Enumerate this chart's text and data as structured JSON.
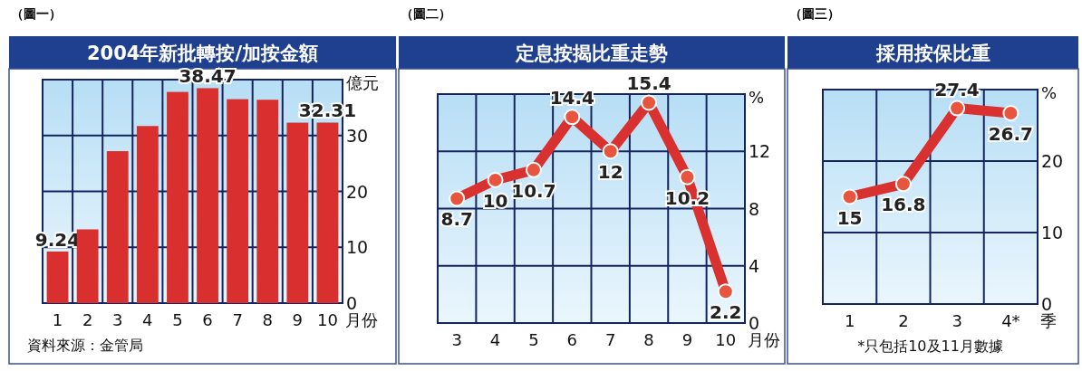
{
  "chart_data": [
    {
      "type": "bar",
      "subtitle": "（圖一）",
      "title": "2004年新批轉按/加按金額",
      "xlabel": "月份",
      "ylabel": "億元",
      "categories": [
        "1",
        "2",
        "3",
        "4",
        "5",
        "6",
        "7",
        "8",
        "9",
        "10"
      ],
      "values": [
        9.24,
        13.2,
        27.2,
        31.7,
        37.8,
        38.47,
        36.5,
        36.4,
        32.3,
        32.31
      ],
      "value_labels": [
        "9.24",
        null,
        null,
        null,
        null,
        "38.47",
        null,
        null,
        null,
        "32.31"
      ],
      "color": "#d9302f",
      "ylim": [
        0,
        40
      ],
      "yticks": [
        0,
        10,
        20,
        30
      ],
      "grid": true,
      "annotations": [
        "資料來源：金管局"
      ]
    },
    {
      "type": "line",
      "subtitle": "（圖二）",
      "title": "定息按揭比重走勢",
      "xlabel": "月份",
      "ylabel": "%",
      "categories": [
        "3",
        "4",
        "5",
        "6",
        "7",
        "8",
        "9",
        "10"
      ],
      "values": [
        8.7,
        10,
        10.7,
        14.4,
        12,
        15.4,
        10.2,
        2.2
      ],
      "color": "#d93030",
      "ylim": [
        0,
        16
      ],
      "yticks": [
        0,
        4,
        8,
        12
      ],
      "grid": true,
      "marker": "circle",
      "data_labels": true
    },
    {
      "type": "line",
      "subtitle": "（圖三）",
      "title": "採用按保比重",
      "xlabel": "季",
      "ylabel": "%",
      "categories": [
        "1",
        "2",
        "3",
        "4*"
      ],
      "values": [
        15,
        16.8,
        27.4,
        26.7
      ],
      "color": "#d93030",
      "ylim": [
        0,
        30
      ],
      "yticks": [
        0,
        10,
        20
      ],
      "grid": true,
      "marker": "circle",
      "data_labels": true,
      "annotations": [
        "*只包括10及11月數據"
      ]
    }
  ]
}
